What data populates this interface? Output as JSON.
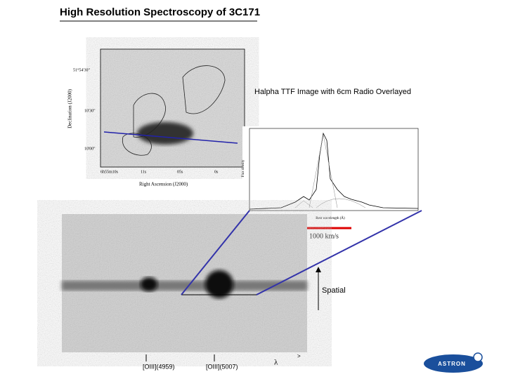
{
  "header": {
    "title": "High Resolution Spectroscopy of 3C171"
  },
  "radio_image": {
    "caption": "Halpha TTF Image with 6cm Radio Overlayed",
    "x_label": "Right Ascension (J2000)",
    "y_label": "Declination (J2000)",
    "x_ticks": [
      "6h55m10s",
      "11s",
      "05s",
      "0s"
    ],
    "y_ticks": [
      "51°54'30\"",
      "10'30\"",
      "10'00\""
    ]
  },
  "spectrum": {
    "x_label": "Rest wavelength (Å)",
    "y_label": "Flux density",
    "scale_label": "1000 km/s"
  },
  "long_slit": {
    "axis_label": "Spatial",
    "lines": [
      "[OIII](4959)",
      "[OIII](5007)"
    ],
    "wavelength": "λ",
    "arrow": ">"
  },
  "logo": {
    "text": "ASTRON"
  }
}
